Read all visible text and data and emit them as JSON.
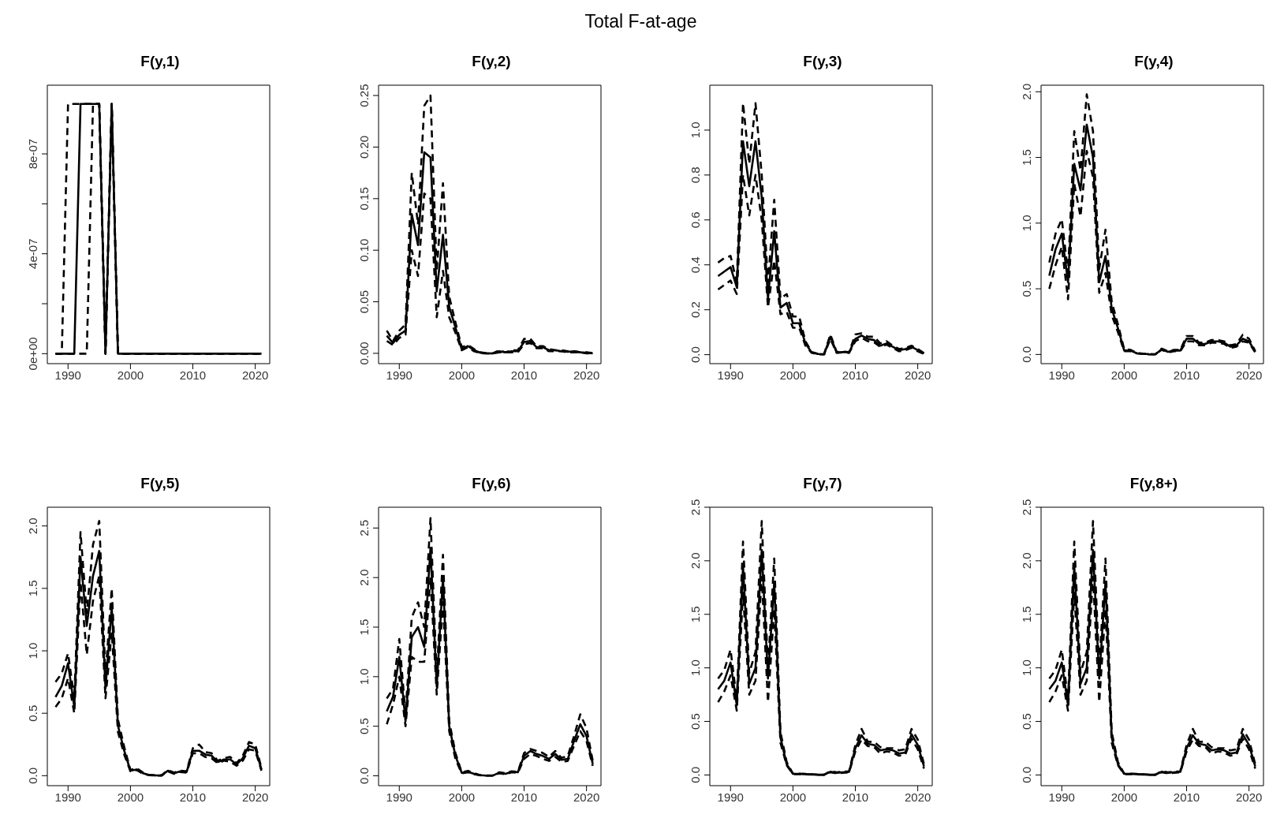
{
  "chart_data": [
    {
      "type": "other",
      "title": "Total F-at-age"
    },
    {
      "type": "line",
      "title": "F(y,1)",
      "x": [
        1988,
        1989,
        1990,
        1991,
        1992,
        1993,
        1994,
        1995,
        1996,
        1997,
        1998,
        1999,
        2000,
        2001,
        2002,
        2003,
        2004,
        2005,
        2006,
        2007,
        2008,
        2009,
        2010,
        2011,
        2012,
        2013,
        2014,
        2015,
        2016,
        2017,
        2018,
        2019,
        2020,
        2021
      ],
      "xlim": [
        1986.68,
        2022.32
      ],
      "xticks": [
        1990,
        2000,
        2010,
        2020
      ],
      "ylim": [
        -4e-08,
        1.075e-06
      ],
      "yticks": [
        {
          "value": 0,
          "label": "0e+00"
        },
        {
          "value": 2e-07,
          "label": null
        },
        {
          "value": 4e-07,
          "label": "4e-07"
        },
        {
          "value": 6e-07,
          "label": null
        },
        {
          "value": 8e-07,
          "label": "8e-07"
        }
      ],
      "series": [
        {
          "color": "#000000",
          "line_style": "dashed",
          "values": [
            0,
            0,
            0,
            0,
            0,
            0,
            1e-06,
            1e-06,
            0,
            1e-06,
            0,
            0,
            0,
            0,
            0,
            0,
            0,
            0,
            0,
            0,
            0,
            0,
            0,
            0,
            0,
            0,
            0,
            0,
            0,
            0,
            0,
            0,
            0,
            0
          ]
        },
        {
          "color": "#000000",
          "line_style": "solid",
          "values": [
            0,
            0,
            0,
            0,
            1e-06,
            1e-06,
            1e-06,
            1e-06,
            0,
            1e-06,
            0,
            0,
            0,
            0,
            0,
            0,
            0,
            0,
            0,
            0,
            0,
            0,
            0,
            0,
            0,
            0,
            0,
            0,
            0,
            0,
            0,
            0,
            0,
            0
          ]
        },
        {
          "color": "#000000",
          "line_style": "dashed",
          "values": [
            0,
            0,
            1e-06,
            1e-06,
            1e-06,
            1e-06,
            1e-06,
            1e-06,
            0,
            1e-06,
            0,
            0,
            0,
            0,
            0,
            0,
            0,
            0,
            0,
            0,
            0,
            0,
            0,
            0,
            0,
            0,
            0,
            0,
            0,
            0,
            0,
            0,
            0,
            0
          ]
        }
      ]
    },
    {
      "type": "line",
      "title": "F(y,2)",
      "x": [
        1988,
        1989,
        1990,
        1991,
        1992,
        1993,
        1994,
        1995,
        1996,
        1997,
        1998,
        1999,
        2000,
        2001,
        2002,
        2003,
        2004,
        2005,
        2006,
        2007,
        2008,
        2009,
        2010,
        2011,
        2012,
        2013,
        2014,
        2015,
        2016,
        2017,
        2018,
        2019,
        2020,
        2021
      ],
      "xlim": [
        1986.68,
        2022.32
      ],
      "xticks": [
        1990,
        2000,
        2010,
        2020
      ],
      "ylim": [
        -0.01,
        0.26
      ],
      "yticks": [
        {
          "value": 0,
          "label": "0.00"
        },
        {
          "value": 0.05,
          "label": "0.05"
        },
        {
          "value": 0.1,
          "label": "0.10"
        },
        {
          "value": 0.15,
          "label": "0.15"
        },
        {
          "value": 0.2,
          "label": "0.20"
        },
        {
          "value": 0.25,
          "label": "0.25"
        }
      ],
      "series": [
        {
          "color": "#000000",
          "line_style": "dashed",
          "values": [
            0.012,
            0.008,
            0.015,
            0.018,
            0.1,
            0.075,
            0.155,
            0.15,
            0.035,
            0.08,
            0.035,
            0.02,
            0.003,
            0.006,
            0.002,
            0,
            0,
            0,
            0.001,
            0.001,
            0.001,
            0.001,
            0.009,
            0.01,
            0.005,
            0.005,
            0.002,
            0.002,
            0.002,
            0.001,
            0.001,
            0.001,
            0,
            0
          ]
        },
        {
          "color": "#000000",
          "line_style": "solid",
          "values": [
            0.017,
            0.01,
            0.018,
            0.022,
            0.135,
            0.105,
            0.195,
            0.19,
            0.06,
            0.115,
            0.045,
            0.025,
            0.004,
            0.007,
            0.003,
            0.0005,
            0,
            0,
            0.002,
            0.001,
            0.002,
            0.002,
            0.011,
            0.012,
            0.006,
            0.006,
            0.003,
            0.003,
            0.002,
            0.0015,
            0.002,
            0.001,
            0.0005,
            0
          ]
        },
        {
          "color": "#000000",
          "line_style": "dashed",
          "values": [
            0.022,
            0.012,
            0.022,
            0.028,
            0.175,
            0.125,
            0.24,
            0.25,
            0.08,
            0.165,
            0.055,
            0.03,
            0.006,
            0.008,
            0.004,
            0.001,
            0,
            0,
            0.003,
            0.001,
            0.003,
            0.003,
            0.014,
            0.014,
            0.007,
            0.007,
            0.004,
            0.003,
            0.003,
            0.002,
            0.002,
            0.001,
            0.001,
            0.0002
          ]
        }
      ]
    },
    {
      "type": "line",
      "title": "F(y,3)",
      "x": [
        1988,
        1989,
        1990,
        1991,
        1992,
        1993,
        1994,
        1995,
        1996,
        1997,
        1998,
        1999,
        2000,
        2001,
        2002,
        2003,
        2004,
        2005,
        2006,
        2007,
        2008,
        2009,
        2010,
        2011,
        2012,
        2013,
        2014,
        2015,
        2016,
        2017,
        2018,
        2019,
        2020,
        2021
      ],
      "xlim": [
        1986.68,
        2022.32
      ],
      "xticks": [
        1990,
        2000,
        2010,
        2020
      ],
      "ylim": [
        -0.04,
        1.2
      ],
      "yticks": [
        {
          "value": 0,
          "label": "0.0"
        },
        {
          "value": 0.2,
          "label": "0.2"
        },
        {
          "value": 0.4,
          "label": "0.4"
        },
        {
          "value": 0.6,
          "label": "0.6"
        },
        {
          "value": 0.8,
          "label": "0.8"
        },
        {
          "value": 1,
          "label": "1.0"
        }
      ],
      "series": [
        {
          "color": "#000000",
          "line_style": "dashed",
          "values": [
            0.29,
            0.31,
            0.33,
            0.27,
            0.8,
            0.62,
            0.8,
            0.6,
            0.21,
            0.42,
            0.18,
            0.19,
            0.12,
            0.12,
            0.04,
            0.008,
            0.002,
            0.001,
            0.07,
            0.008,
            0.01,
            0.008,
            0.06,
            0.075,
            0.06,
            0.055,
            0.035,
            0.045,
            0.03,
            0.015,
            0.02,
            0.03,
            0.015,
            0.003
          ]
        },
        {
          "color": "#000000",
          "line_style": "solid",
          "values": [
            0.35,
            0.37,
            0.39,
            0.3,
            0.95,
            0.75,
            0.95,
            0.7,
            0.25,
            0.55,
            0.21,
            0.23,
            0.14,
            0.14,
            0.05,
            0.01,
            0.003,
            0.002,
            0.08,
            0.01,
            0.012,
            0.01,
            0.07,
            0.085,
            0.07,
            0.065,
            0.04,
            0.05,
            0.035,
            0.02,
            0.025,
            0.035,
            0.02,
            0.005
          ]
        },
        {
          "color": "#000000",
          "line_style": "dashed",
          "values": [
            0.41,
            0.43,
            0.44,
            0.32,
            1.12,
            0.85,
            1.12,
            0.8,
            0.32,
            0.69,
            0.25,
            0.27,
            0.17,
            0.17,
            0.06,
            0.012,
            0.004,
            0.003,
            0.09,
            0.012,
            0.014,
            0.012,
            0.09,
            0.095,
            0.08,
            0.08,
            0.05,
            0.06,
            0.04,
            0.025,
            0.03,
            0.04,
            0.025,
            0.007
          ]
        }
      ]
    },
    {
      "type": "line",
      "title": "F(y,4)",
      "x": [
        1988,
        1989,
        1990,
        1991,
        1992,
        1993,
        1994,
        1995,
        1996,
        1997,
        1998,
        1999,
        2000,
        2001,
        2002,
        2003,
        2004,
        2005,
        2006,
        2007,
        2008,
        2009,
        2010,
        2011,
        2012,
        2013,
        2014,
        2015,
        2016,
        2017,
        2018,
        2019,
        2020,
        2021
      ],
      "xlim": [
        1986.68,
        2022.32
      ],
      "xticks": [
        1990,
        2000,
        2010,
        2020
      ],
      "ylim": [
        -0.07,
        2.05
      ],
      "yticks": [
        {
          "value": 0,
          "label": "0.0"
        },
        {
          "value": 0.5,
          "label": "0.5"
        },
        {
          "value": 1,
          "label": "1.0"
        },
        {
          "value": 1.5,
          "label": "1.5"
        },
        {
          "value": 2,
          "label": "2.0"
        }
      ],
      "series": [
        {
          "color": "#000000",
          "line_style": "dashed",
          "values": [
            0.5,
            0.68,
            0.82,
            0.42,
            1.3,
            1.05,
            1.55,
            1.35,
            0.47,
            0.62,
            0.3,
            0.17,
            0.025,
            0.025,
            0.008,
            0.004,
            0.001,
            0.001,
            0.035,
            0.015,
            0.025,
            0.025,
            0.1,
            0.1,
            0.07,
            0.07,
            0.09,
            0.09,
            0.08,
            0.05,
            0.06,
            0.1,
            0.09,
            0.015
          ]
        },
        {
          "color": "#000000",
          "line_style": "solid",
          "values": [
            0.6,
            0.8,
            0.92,
            0.55,
            1.45,
            1.25,
            1.75,
            1.5,
            0.55,
            0.75,
            0.35,
            0.2,
            0.03,
            0.03,
            0.01,
            0.005,
            0.002,
            0.001,
            0.04,
            0.02,
            0.03,
            0.03,
            0.12,
            0.12,
            0.08,
            0.08,
            0.1,
            0.1,
            0.09,
            0.06,
            0.07,
            0.12,
            0.1,
            0.02
          ]
        },
        {
          "color": "#000000",
          "line_style": "dashed",
          "values": [
            0.7,
            0.92,
            1.03,
            0.62,
            1.7,
            1.4,
            1.98,
            1.7,
            0.65,
            0.95,
            0.4,
            0.23,
            0.04,
            0.035,
            0.012,
            0.006,
            0.003,
            0.002,
            0.045,
            0.025,
            0.035,
            0.035,
            0.14,
            0.14,
            0.09,
            0.09,
            0.11,
            0.11,
            0.1,
            0.07,
            0.08,
            0.15,
            0.12,
            0.025
          ]
        }
      ]
    },
    {
      "type": "line",
      "title": "F(y,5)",
      "x": [
        1988,
        1989,
        1990,
        1991,
        1992,
        1993,
        1994,
        1995,
        1996,
        1997,
        1998,
        1999,
        2000,
        2001,
        2002,
        2003,
        2004,
        2005,
        2006,
        2007,
        2008,
        2009,
        2010,
        2011,
        2012,
        2013,
        2014,
        2015,
        2016,
        2017,
        2018,
        2019,
        2020,
        2021
      ],
      "xlim": [
        1986.68,
        2022.32
      ],
      "xticks": [
        1990,
        2000,
        2010,
        2020
      ],
      "ylim": [
        -0.08,
        2.15
      ],
      "yticks": [
        {
          "value": 0,
          "label": "0.0"
        },
        {
          "value": 0.5,
          "label": "0.5"
        },
        {
          "value": 1,
          "label": "1.0"
        },
        {
          "value": 1.5,
          "label": "1.5"
        },
        {
          "value": 2,
          "label": "2.0"
        }
      ],
      "series": [
        {
          "color": "#000000",
          "line_style": "dashed",
          "values": [
            0.55,
            0.62,
            0.78,
            0.5,
            1.55,
            0.97,
            1.4,
            1.6,
            0.62,
            1.15,
            0.35,
            0.17,
            0.035,
            0.045,
            0.015,
            0.004,
            0.001,
            0.001,
            0.035,
            0.015,
            0.03,
            0.025,
            0.18,
            0.18,
            0.15,
            0.14,
            0.1,
            0.12,
            0.11,
            0.08,
            0.12,
            0.21,
            0.2,
            0.04
          ]
        },
        {
          "color": "#000000",
          "line_style": "solid",
          "values": [
            0.63,
            0.72,
            0.9,
            0.55,
            1.75,
            1.2,
            1.6,
            1.8,
            0.7,
            1.35,
            0.4,
            0.2,
            0.04,
            0.05,
            0.02,
            0.005,
            0.002,
            0.002,
            0.04,
            0.02,
            0.035,
            0.03,
            0.2,
            0.2,
            0.17,
            0.16,
            0.11,
            0.13,
            0.13,
            0.09,
            0.14,
            0.24,
            0.22,
            0.05
          ]
        },
        {
          "color": "#000000",
          "line_style": "dashed",
          "values": [
            0.75,
            0.82,
            0.98,
            0.62,
            1.95,
            1.3,
            1.85,
            2.04,
            0.8,
            1.5,
            0.45,
            0.23,
            0.045,
            0.06,
            0.025,
            0.006,
            0.003,
            0.003,
            0.045,
            0.025,
            0.04,
            0.035,
            0.22,
            0.25,
            0.19,
            0.18,
            0.12,
            0.14,
            0.15,
            0.1,
            0.16,
            0.27,
            0.25,
            0.06
          ]
        }
      ]
    },
    {
      "type": "line",
      "title": "F(y,6)",
      "x": [
        1988,
        1989,
        1990,
        1991,
        1992,
        1993,
        1994,
        1995,
        1996,
        1997,
        1998,
        1999,
        2000,
        2001,
        2002,
        2003,
        2004,
        2005,
        2006,
        2007,
        2008,
        2009,
        2010,
        2011,
        2012,
        2013,
        2014,
        2015,
        2016,
        2017,
        2018,
        2019,
        2020,
        2021
      ],
      "xlim": [
        1986.68,
        2022.32
      ],
      "xticks": [
        1990,
        2000,
        2010,
        2020
      ],
      "ylim": [
        -0.1,
        2.71
      ],
      "yticks": [
        {
          "value": 0,
          "label": "0.0"
        },
        {
          "value": 0.5,
          "label": "0.5"
        },
        {
          "value": 1,
          "label": "1.0"
        },
        {
          "value": 1.5,
          "label": "1.5"
        },
        {
          "value": 2,
          "label": "2.0"
        },
        {
          "value": 2.5,
          "label": "2.5"
        }
      ],
      "series": [
        {
          "color": "#000000",
          "line_style": "dashed",
          "values": [
            0.52,
            0.72,
            1.0,
            0.5,
            1.2,
            1.15,
            1.15,
            2.0,
            0.82,
            1.75,
            0.45,
            0.17,
            0.025,
            0.035,
            0.015,
            0.004,
            0.001,
            0.001,
            0.025,
            0.015,
            0.035,
            0.03,
            0.17,
            0.22,
            0.2,
            0.17,
            0.15,
            0.19,
            0.14,
            0.15,
            0.3,
            0.45,
            0.35,
            0.1
          ]
        },
        {
          "color": "#000000",
          "line_style": "solid",
          "values": [
            0.65,
            0.8,
            1.2,
            0.55,
            1.4,
            1.5,
            1.3,
            2.3,
            0.9,
            2.0,
            0.5,
            0.2,
            0.03,
            0.04,
            0.02,
            0.005,
            0.002,
            0.002,
            0.03,
            0.02,
            0.04,
            0.035,
            0.2,
            0.25,
            0.22,
            0.2,
            0.17,
            0.22,
            0.16,
            0.17,
            0.35,
            0.52,
            0.4,
            0.12
          ]
        },
        {
          "color": "#000000",
          "line_style": "dashed",
          "values": [
            0.78,
            0.88,
            1.38,
            0.62,
            1.6,
            1.75,
            1.5,
            2.6,
            1.0,
            2.23,
            0.55,
            0.23,
            0.035,
            0.05,
            0.025,
            0.006,
            0.003,
            0.003,
            0.035,
            0.025,
            0.045,
            0.04,
            0.23,
            0.27,
            0.25,
            0.23,
            0.19,
            0.25,
            0.18,
            0.2,
            0.4,
            0.62,
            0.48,
            0.15
          ]
        }
      ]
    },
    {
      "type": "line",
      "title": "F(y,7)",
      "x": [
        1988,
        1989,
        1990,
        1991,
        1992,
        1993,
        1994,
        1995,
        1996,
        1997,
        1998,
        1999,
        2000,
        2001,
        2002,
        2003,
        2004,
        2005,
        2006,
        2007,
        2008,
        2009,
        2010,
        2011,
        2012,
        2013,
        2014,
        2015,
        2016,
        2017,
        2018,
        2019,
        2020,
        2021
      ],
      "xlim": [
        1986.68,
        2022.32
      ],
      "xticks": [
        1990,
        2000,
        2010,
        2020
      ],
      "ylim": [
        -0.1,
        2.5
      ],
      "yticks": [
        {
          "value": 0,
          "label": "0.0"
        },
        {
          "value": 0.5,
          "label": "0.5"
        },
        {
          "value": 1,
          "label": "1.0"
        },
        {
          "value": 1.5,
          "label": "1.5"
        },
        {
          "value": 2,
          "label": "2.0"
        },
        {
          "value": 2.5,
          "label": "2.5"
        }
      ],
      "series": [
        {
          "color": "#000000",
          "line_style": "dashed",
          "values": [
            0.68,
            0.78,
            0.93,
            0.6,
            1.7,
            0.75,
            0.88,
            1.85,
            0.68,
            1.55,
            0.3,
            0.09,
            0.008,
            0.008,
            0.006,
            0.004,
            0.001,
            0.001,
            0.025,
            0.015,
            0.02,
            0.025,
            0.22,
            0.33,
            0.27,
            0.26,
            0.2,
            0.22,
            0.21,
            0.18,
            0.19,
            0.34,
            0.24,
            0.06
          ]
        },
        {
          "color": "#000000",
          "line_style": "solid",
          "values": [
            0.8,
            0.88,
            1.05,
            0.65,
            1.95,
            0.85,
            1.0,
            2.1,
            0.9,
            1.8,
            0.35,
            0.1,
            0.01,
            0.01,
            0.008,
            0.005,
            0.002,
            0.002,
            0.03,
            0.02,
            0.025,
            0.03,
            0.25,
            0.37,
            0.29,
            0.28,
            0.23,
            0.24,
            0.23,
            0.2,
            0.21,
            0.38,
            0.28,
            0.08
          ]
        },
        {
          "color": "#000000",
          "line_style": "dashed",
          "values": [
            0.9,
            0.98,
            1.17,
            0.7,
            2.18,
            0.95,
            1.15,
            2.37,
            1.0,
            2.02,
            0.4,
            0.12,
            0.012,
            0.012,
            0.01,
            0.006,
            0.003,
            0.003,
            0.035,
            0.025,
            0.03,
            0.035,
            0.28,
            0.43,
            0.31,
            0.31,
            0.26,
            0.25,
            0.25,
            0.23,
            0.24,
            0.43,
            0.33,
            0.1
          ]
        }
      ]
    },
    {
      "type": "line",
      "title": "F(y,8+)",
      "x": [
        1988,
        1989,
        1990,
        1991,
        1992,
        1993,
        1994,
        1995,
        1996,
        1997,
        1998,
        1999,
        2000,
        2001,
        2002,
        2003,
        2004,
        2005,
        2006,
        2007,
        2008,
        2009,
        2010,
        2011,
        2012,
        2013,
        2014,
        2015,
        2016,
        2017,
        2018,
        2019,
        2020,
        2021
      ],
      "xlim": [
        1986.68,
        2022.32
      ],
      "xticks": [
        1990,
        2000,
        2010,
        2020
      ],
      "ylim": [
        -0.1,
        2.5
      ],
      "yticks": [
        {
          "value": 0,
          "label": "0.0"
        },
        {
          "value": 0.5,
          "label": "0.5"
        },
        {
          "value": 1,
          "label": "1.0"
        },
        {
          "value": 1.5,
          "label": "1.5"
        },
        {
          "value": 2,
          "label": "2.0"
        },
        {
          "value": 2.5,
          "label": "2.5"
        }
      ],
      "series": [
        {
          "color": "#000000",
          "line_style": "dashed",
          "values": [
            0.68,
            0.78,
            0.93,
            0.6,
            1.7,
            0.75,
            0.88,
            1.85,
            0.68,
            1.55,
            0.3,
            0.09,
            0.008,
            0.008,
            0.006,
            0.004,
            0.001,
            0.001,
            0.025,
            0.015,
            0.02,
            0.025,
            0.22,
            0.33,
            0.27,
            0.26,
            0.2,
            0.22,
            0.21,
            0.18,
            0.19,
            0.34,
            0.24,
            0.06
          ]
        },
        {
          "color": "#000000",
          "line_style": "solid",
          "values": [
            0.8,
            0.88,
            1.05,
            0.65,
            1.95,
            0.85,
            1.0,
            2.1,
            0.9,
            1.8,
            0.35,
            0.1,
            0.01,
            0.01,
            0.008,
            0.005,
            0.002,
            0.002,
            0.03,
            0.02,
            0.025,
            0.03,
            0.25,
            0.37,
            0.29,
            0.28,
            0.23,
            0.24,
            0.23,
            0.2,
            0.21,
            0.38,
            0.28,
            0.08
          ]
        },
        {
          "color": "#000000",
          "line_style": "dashed",
          "values": [
            0.9,
            0.98,
            1.17,
            0.7,
            2.18,
            0.95,
            1.15,
            2.37,
            1.0,
            2.02,
            0.4,
            0.12,
            0.012,
            0.012,
            0.01,
            0.006,
            0.003,
            0.003,
            0.035,
            0.025,
            0.03,
            0.035,
            0.28,
            0.43,
            0.31,
            0.31,
            0.26,
            0.25,
            0.25,
            0.23,
            0.24,
            0.43,
            0.33,
            0.1
          ]
        }
      ]
    }
  ]
}
